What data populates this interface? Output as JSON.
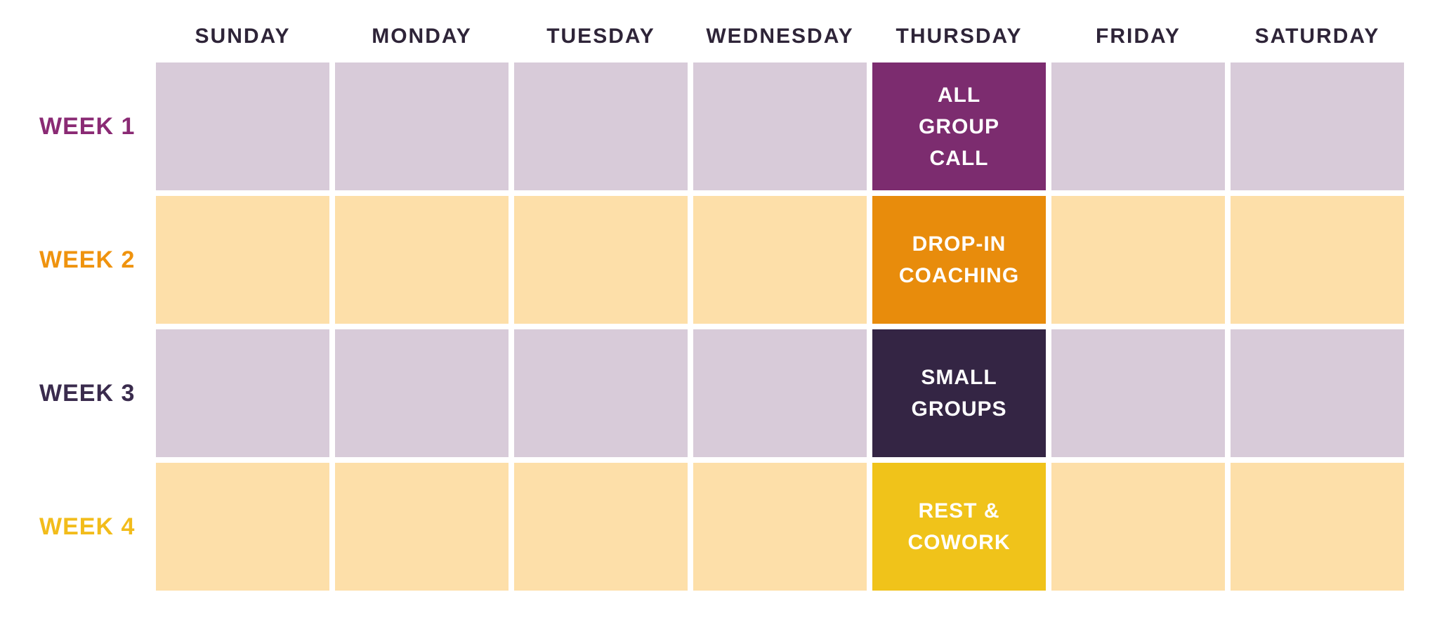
{
  "colors": {
    "background": "#FFFFFF",
    "day_header_text": "#2E2438",
    "event_text": "#FFFFFF",
    "lavender_cell": "#D8CBD9",
    "peach_cell": "#FDDFA9"
  },
  "calendar": {
    "day_headers": [
      "SUNDAY",
      "MONDAY",
      "TUESDAY",
      "WEDNESDAY",
      "THURSDAY",
      "FRIDAY",
      "SATURDAY"
    ],
    "weeks": [
      {
        "label": "WEEK 1",
        "label_color": "#8A2A74",
        "cell_color": "#D8CBD9",
        "event": {
          "day": "THURSDAY",
          "text": "ALL\nGROUP\nCALL",
          "color": "#7C2C6F",
          "text_color": "#FFFFFF"
        }
      },
      {
        "label": "WEEK 2",
        "label_color": "#EF930E",
        "cell_color": "#FDDFA9",
        "event": {
          "day": "THURSDAY",
          "text": "DROP-IN\nCOACHING",
          "color": "#E88C0C",
          "text_color": "#FFFFFF"
        }
      },
      {
        "label": "WEEK 3",
        "label_color": "#3A2B4D",
        "cell_color": "#D8CBD9",
        "event": {
          "day": "THURSDAY",
          "text": "SMALL\nGROUPS",
          "color": "#342544",
          "text_color": "#FFFFFF"
        }
      },
      {
        "label": "WEEK 4",
        "label_color": "#F2BC1B",
        "cell_color": "#FDDFA9",
        "event": {
          "day": "THURSDAY",
          "text": "REST &\nCOWORK",
          "color": "#F0C31A",
          "text_color": "#FFFFFF"
        }
      }
    ]
  }
}
